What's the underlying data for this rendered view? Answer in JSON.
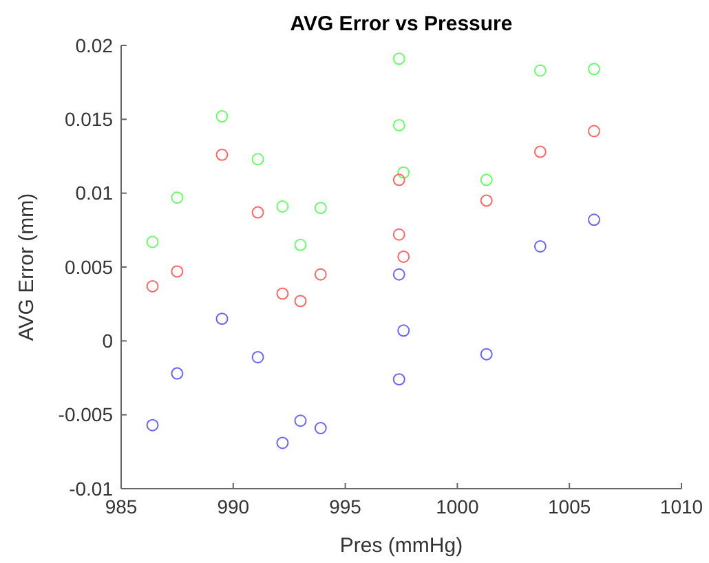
{
  "chart_data": {
    "type": "scatter",
    "title": "AVG Error vs Pressure",
    "xlabel": "Pres (mmHg)",
    "ylabel": "AVG Error (mm)",
    "marker": "circle",
    "grid": false,
    "xlim": [
      985,
      1010
    ],
    "xticks": [
      985,
      990,
      995,
      1000,
      1005,
      1010
    ],
    "ylim": [
      -0.01,
      0.02
    ],
    "yticks": [
      -0.01,
      -0.005,
      0,
      0.005,
      0.01,
      0.015,
      0.02
    ],
    "x": [
      986.4,
      987.5,
      989.5,
      991.1,
      992.2,
      993.0,
      993.9,
      997.4,
      997.4,
      997.6,
      1001.3,
      1003.7,
      1006.1
    ],
    "series": [
      {
        "color": "#66ff66",
        "values": [
          0.0067,
          0.0097,
          0.0152,
          0.0123,
          0.0091,
          0.0065,
          0.009,
          0.0191,
          0.0146,
          0.0114,
          0.0109,
          0.0183,
          0.0184
        ]
      },
      {
        "color": "#ff6666",
        "values": [
          0.0037,
          0.0047,
          0.0126,
          0.0087,
          0.0032,
          0.0027,
          0.0045,
          0.0109,
          0.0072,
          0.0057,
          0.0095,
          0.0128,
          0.0142
        ]
      },
      {
        "color": "#6666ff",
        "values": [
          -0.0057,
          -0.0022,
          0.0015,
          -0.0011,
          -0.0069,
          -0.0054,
          -0.0059,
          0.0045,
          -0.0026,
          0.0007,
          -0.0009,
          0.0064,
          0.0082
        ]
      }
    ]
  }
}
